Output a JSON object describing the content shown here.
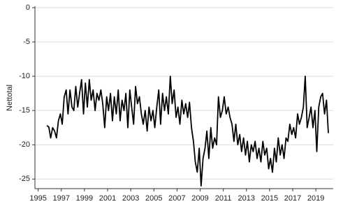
{
  "chart_data": {
    "type": "line",
    "y_label": "Nettotal",
    "x": [
      1995.75,
      1995.92,
      1996.08,
      1996.25,
      1996.42,
      1996.58,
      1996.75,
      1996.92,
      1997.08,
      1997.25,
      1997.42,
      1997.58,
      1997.75,
      1997.92,
      1998.08,
      1998.25,
      1998.42,
      1998.58,
      1998.75,
      1998.92,
      1999.08,
      1999.25,
      1999.42,
      1999.58,
      1999.75,
      1999.92,
      2000.08,
      2000.25,
      2000.42,
      2000.58,
      2000.75,
      2000.92,
      2001.08,
      2001.25,
      2001.42,
      2001.58,
      2001.75,
      2001.92,
      2002.08,
      2002.25,
      2002.42,
      2002.58,
      2002.75,
      2002.92,
      2003.08,
      2003.25,
      2003.42,
      2003.58,
      2003.75,
      2003.92,
      2004.08,
      2004.25,
      2004.42,
      2004.58,
      2004.75,
      2004.92,
      2005.08,
      2005.25,
      2005.42,
      2005.58,
      2005.75,
      2005.92,
      2006.08,
      2006.25,
      2006.42,
      2006.58,
      2006.75,
      2006.92,
      2007.08,
      2007.25,
      2007.42,
      2007.58,
      2007.75,
      2007.92,
      2008.08,
      2008.25,
      2008.42,
      2008.58,
      2008.75,
      2008.92,
      2009.08,
      2009.25,
      2009.42,
      2009.58,
      2009.75,
      2009.92,
      2010.08,
      2010.25,
      2010.42,
      2010.58,
      2010.75,
      2010.92,
      2011.08,
      2011.25,
      2011.42,
      2011.58,
      2011.75,
      2011.92,
      2012.08,
      2012.25,
      2012.42,
      2012.58,
      2012.75,
      2012.92,
      2013.08,
      2013.25,
      2013.42,
      2013.58,
      2013.75,
      2013.92,
      2014.08,
      2014.25,
      2014.42,
      2014.58,
      2014.75,
      2014.92,
      2015.08,
      2015.25,
      2015.42,
      2015.58,
      2015.75,
      2015.92,
      2016.08,
      2016.25,
      2016.42,
      2016.58,
      2016.75,
      2016.92,
      2017.08,
      2017.25,
      2017.42,
      2017.58,
      2017.75,
      2017.92,
      2018.08,
      2018.25,
      2018.42,
      2018.58,
      2018.75,
      2018.92,
      2019.08,
      2019.25,
      2019.42,
      2019.58,
      2019.75,
      2019.92,
      2020.08
    ],
    "series": [
      {
        "color": "#000000",
        "values": [
          -17.2,
          -17.4,
          -19.0,
          -17.5,
          -18.0,
          -19.0,
          -16.5,
          -15.5,
          -17.0,
          -13.0,
          -12.0,
          -15.5,
          -12.0,
          -14.5,
          -15.0,
          -11.5,
          -14.5,
          -12.5,
          -10.5,
          -15.5,
          -11.0,
          -14.5,
          -10.5,
          -13.5,
          -12.0,
          -15.0,
          -12.5,
          -13.5,
          -12.0,
          -14.0,
          -17.5,
          -13.0,
          -15.0,
          -12.5,
          -16.5,
          -13.0,
          -15.5,
          -12.0,
          -16.5,
          -13.5,
          -15.0,
          -12.5,
          -17.5,
          -12.0,
          -14.5,
          -17.0,
          -11.5,
          -14.0,
          -13.0,
          -15.5,
          -17.0,
          -15.0,
          -18.0,
          -14.5,
          -16.5,
          -15.0,
          -17.5,
          -14.5,
          -12.0,
          -17.0,
          -12.5,
          -15.0,
          -13.0,
          -15.5,
          -10.0,
          -14.0,
          -12.0,
          -16.0,
          -14.5,
          -17.0,
          -13.5,
          -15.5,
          -14.0,
          -16.0,
          -13.8,
          -17.5,
          -19.5,
          -22.5,
          -24.0,
          -20.5,
          -26.0,
          -22.0,
          -20.5,
          -18.0,
          -22.0,
          -17.5,
          -20.5,
          -19.0,
          -20.0,
          -13.0,
          -16.0,
          -15.0,
          -13.0,
          -15.5,
          -14.5,
          -16.0,
          -17.0,
          -19.5,
          -17.0,
          -20.0,
          -18.5,
          -21.0,
          -19.0,
          -21.5,
          -19.5,
          -22.5,
          -20.0,
          -21.0,
          -19.5,
          -22.0,
          -20.5,
          -22.5,
          -19.5,
          -21.5,
          -20.5,
          -23.5,
          -22.0,
          -24.0,
          -20.5,
          -22.5,
          -19.0,
          -21.5,
          -20.0,
          -22.0,
          -19.0,
          -19.5,
          -17.0,
          -18.5,
          -17.5,
          -19.0,
          -15.5,
          -17.0,
          -16.0,
          -14.5,
          -10.0,
          -17.5,
          -16.0,
          -14.5,
          -17.5,
          -15.0,
          -21.0,
          -14.5,
          -13.0,
          -12.5,
          -15.5,
          -13.5,
          -18.3
        ]
      }
    ],
    "xlim": [
      1994.72,
      2020.5
    ],
    "xticks": [
      1995,
      1997,
      1999,
      2001,
      2003,
      2005,
      2007,
      2009,
      2011,
      2013,
      2015,
      2017,
      2019
    ],
    "ylim": [
      -26.4,
      0
    ],
    "yticks": [
      0,
      -5,
      -10,
      -15,
      -20,
      -25
    ],
    "grid": true
  }
}
